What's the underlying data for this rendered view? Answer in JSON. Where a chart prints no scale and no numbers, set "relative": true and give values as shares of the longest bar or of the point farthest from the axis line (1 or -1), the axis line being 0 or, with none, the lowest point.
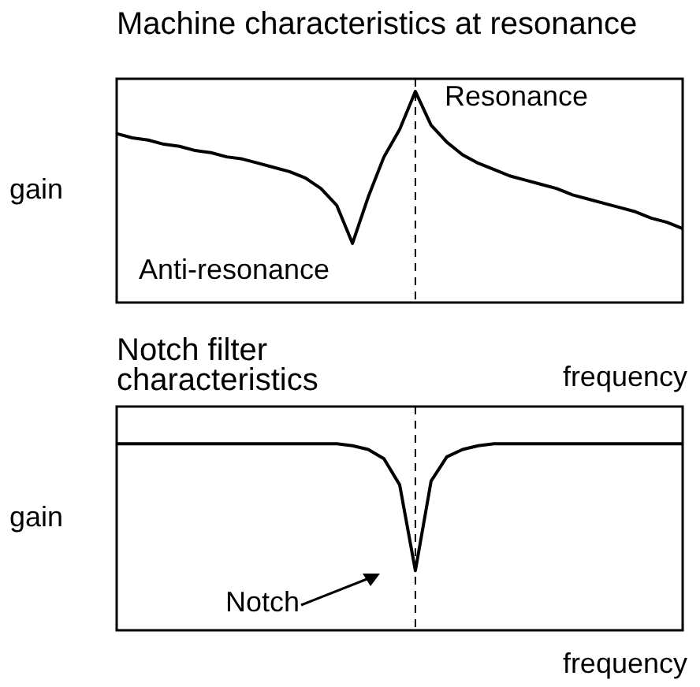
{
  "chart_data": [
    {
      "type": "line",
      "title": "Machine characteristics at resonance",
      "xlabel": "frequency",
      "ylabel": "gain",
      "relative": true,
      "legend": false,
      "categories": [
        null,
        null,
        null,
        null,
        null,
        null,
        null,
        null,
        null,
        null,
        null,
        null,
        null,
        null,
        null,
        null,
        null,
        null,
        null,
        null,
        null,
        null,
        null,
        null,
        null,
        null,
        null,
        null,
        null,
        null,
        null,
        null,
        null,
        null,
        null,
        null,
        null
      ],
      "series": [
        {
          "color": "#000000",
          "values": [
            0.8,
            0.78,
            0.77,
            0.75,
            0.74,
            0.72,
            0.71,
            0.69,
            0.68,
            0.66,
            0.64,
            0.62,
            0.59,
            0.54,
            0.46,
            0.28,
            0.5,
            0.69,
            0.82,
            1,
            0.84,
            0.76,
            0.7,
            0.66,
            0.63,
            0.6,
            0.58,
            0.56,
            0.54,
            0.51,
            0.49,
            0.47,
            0.45,
            0.43,
            0.4,
            0.38,
            0.35
          ]
        }
      ],
      "annotations": [
        "Resonance",
        "Anti-resonance"
      ]
    },
    {
      "type": "line",
      "title": "Notch filter characteristics",
      "xlabel": "frequency",
      "ylabel": "gain",
      "relative": true,
      "legend": false,
      "categories": [
        null,
        null,
        null,
        null,
        null,
        null,
        null,
        null,
        null,
        null,
        null,
        null,
        null,
        null,
        null,
        null,
        null,
        null,
        null,
        null,
        null,
        null,
        null,
        null,
        null,
        null,
        null,
        null,
        null,
        null,
        null,
        null,
        null,
        null,
        null,
        null,
        null
      ],
      "series": [
        {
          "color": "#000000",
          "values": [
            1,
            1,
            1,
            1,
            1,
            1,
            1,
            1,
            1,
            1,
            1,
            1,
            1,
            1,
            1,
            0.99,
            0.97,
            0.92,
            0.78,
            0.32,
            0.8,
            0.93,
            0.97,
            0.99,
            1,
            1,
            1,
            1,
            1,
            1,
            1,
            1,
            1,
            1,
            1,
            1,
            1
          ]
        }
      ],
      "annotations": [
        "Notch"
      ]
    }
  ]
}
